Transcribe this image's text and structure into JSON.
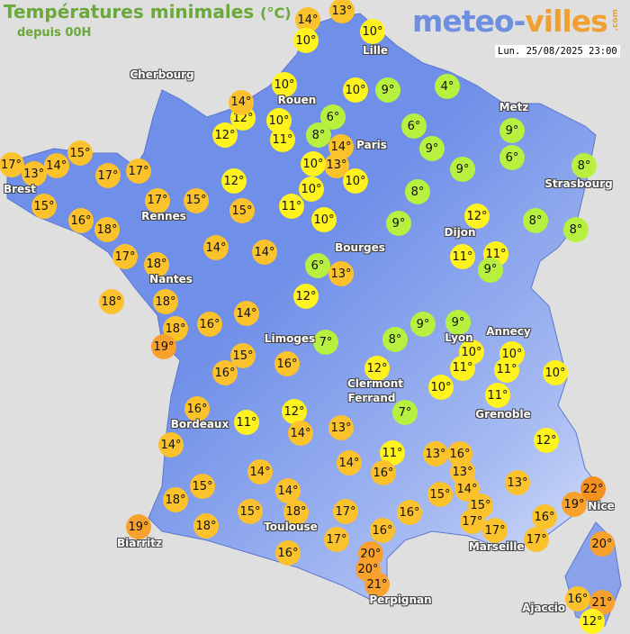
{
  "header": {
    "title": "Températures minimales",
    "unit": "(°C)",
    "subtitle": "depuis 00H",
    "logo_main": "meteo-",
    "logo_accent": "villes",
    "logo_tld": ".com",
    "datetime": "Lun. 25/08/2025 23:00"
  },
  "colors": {
    "background": "#e0dfdf",
    "land": "#6f8fe8",
    "cold": "#b8f040",
    "cool": "#fff21d",
    "mild": "#fcc22c",
    "warm": "#f8a12c",
    "hot": "#f4901f"
  },
  "cities": [
    "Lille",
    "Rouen",
    "Paris",
    "Metz",
    "Strasbourg",
    "Cherbourg",
    "Brest",
    "Rennes",
    "Nantes",
    "Dijon",
    "Bourges",
    "Limoges",
    "Lyon",
    "Annecy",
    "Clermont",
    "Ferrand",
    "Grenoble",
    "Bordeaux",
    "Biarritz",
    "Toulouse",
    "Nice",
    "Marseille",
    "Perpignan",
    "Ajaccio"
  ],
  "temperatures": [
    14,
    13,
    10,
    10,
    10,
    10,
    9,
    4,
    12,
    14,
    12,
    10,
    11,
    6,
    8,
    14,
    13,
    6,
    9,
    10,
    10,
    10,
    9,
    8,
    9,
    6,
    8,
    17,
    13,
    14,
    15,
    17,
    17,
    17,
    15,
    12,
    15,
    11,
    10,
    15,
    16,
    18,
    17,
    18,
    14,
    14,
    9,
    12,
    8,
    8,
    6,
    13,
    11,
    11,
    9,
    18,
    18,
    12,
    16,
    14,
    18,
    19,
    15,
    16,
    7,
    9,
    9,
    8,
    10,
    11,
    10,
    11,
    10,
    16,
    12,
    10,
    11,
    16,
    11,
    12,
    14,
    7,
    13,
    14,
    14,
    15,
    18,
    14,
    14,
    11,
    16,
    13,
    16,
    13,
    14,
    13,
    12,
    15,
    18,
    19,
    18,
    17,
    16,
    15,
    15,
    17,
    17,
    17,
    16,
    19,
    22,
    16,
    17,
    16,
    20,
    20,
    21,
    20,
    16,
    21,
    12
  ],
  "degree_suffix": "°"
}
